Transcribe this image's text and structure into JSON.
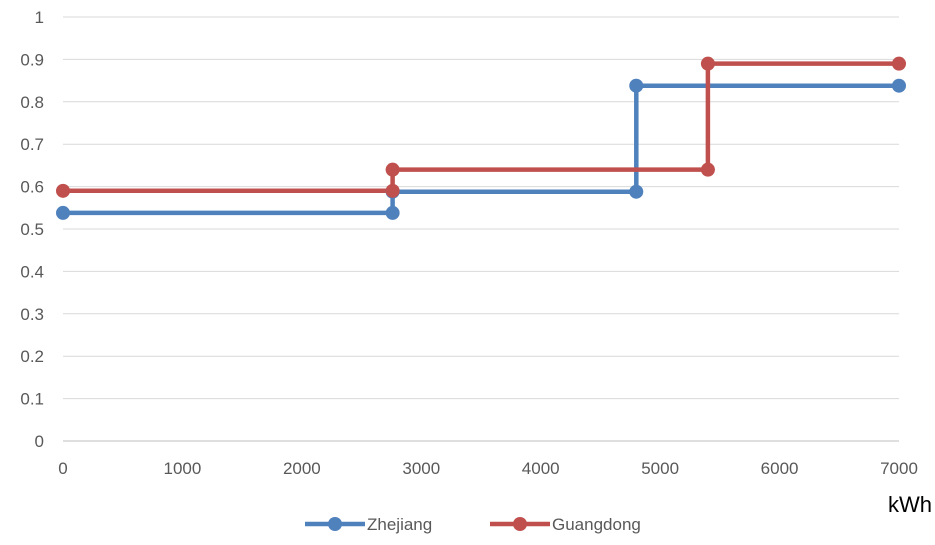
{
  "chart_data": {
    "type": "line",
    "step": true,
    "xlabel": "kWh",
    "ylabel": "",
    "xlim": [
      0,
      7000
    ],
    "ylim": [
      0,
      1
    ],
    "x_ticks": [
      0,
      1000,
      2000,
      3000,
      4000,
      5000,
      6000,
      7000
    ],
    "x_tick_labels": [
      "0",
      "1000",
      "2000",
      "3000",
      "4000",
      "5000",
      "6000",
      "7000"
    ],
    "y_ticks": [
      0,
      0.1,
      0.2,
      0.3,
      0.4,
      0.5,
      0.6,
      0.7,
      0.8,
      0.9,
      1
    ],
    "y_tick_labels": [
      "0",
      "0.1",
      "0.2",
      "0.3",
      "0.4",
      "0.5",
      "0.6",
      "0.7",
      "0.8",
      "0.9",
      "1"
    ],
    "grid": "horizontal",
    "legend_position": "bottom",
    "series": [
      {
        "name": "Zhejiang",
        "color": "#4f81bd",
        "points": [
          [
            0,
            0.538
          ],
          [
            2760,
            0.538
          ],
          [
            2760,
            0.588
          ],
          [
            4800,
            0.588
          ],
          [
            4800,
            0.838
          ],
          [
            7000,
            0.838
          ]
        ]
      },
      {
        "name": "Guangdong",
        "color": "#c0504d",
        "points": [
          [
            0,
            0.59
          ],
          [
            2760,
            0.59
          ],
          [
            2760,
            0.64
          ],
          [
            5400,
            0.64
          ],
          [
            5400,
            0.89
          ],
          [
            7000,
            0.89
          ]
        ]
      }
    ]
  }
}
